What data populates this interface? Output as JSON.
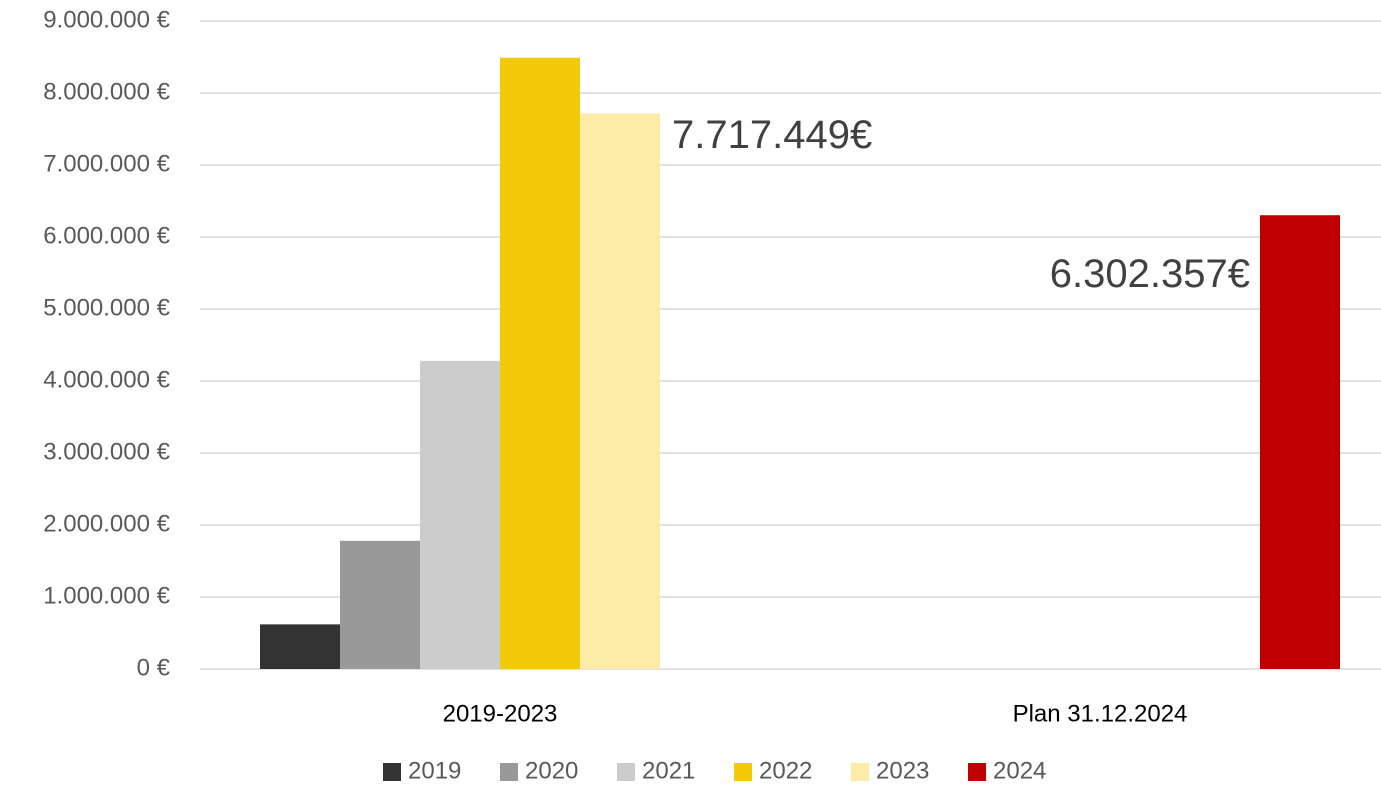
{
  "chart_data": {
    "type": "bar",
    "categories": [
      "2019-2023",
      "Plan 31.12.2024"
    ],
    "series": [
      {
        "name": "2019",
        "color": "#333333",
        "values": [
          620000,
          null
        ]
      },
      {
        "name": "2020",
        "color": "#999999",
        "values": [
          1780000,
          null
        ]
      },
      {
        "name": "2021",
        "color": "#cccccc",
        "values": [
          4280000,
          null
        ]
      },
      {
        "name": "2022",
        "color": "#f2ca0a",
        "values": [
          8490000,
          null
        ]
      },
      {
        "name": "2023",
        "color": "#fdeba8",
        "values": [
          7717449,
          null
        ],
        "value_labels": [
          "7.717.449€",
          null
        ]
      },
      {
        "name": "2024",
        "color": "#c00000",
        "values": [
          null,
          6302357
        ],
        "value_labels": [
          null,
          "6.302.357€"
        ]
      }
    ],
    "ylim": [
      0,
      9000000
    ],
    "yticks": [
      {
        "value": 0,
        "label": "0 €"
      },
      {
        "value": 1000000,
        "label": "1.000.000 €"
      },
      {
        "value": 2000000,
        "label": "2.000.000 €"
      },
      {
        "value": 3000000,
        "label": "3.000.000 €"
      },
      {
        "value": 4000000,
        "label": "4.000.000 €"
      },
      {
        "value": 5000000,
        "label": "5.000.000 €"
      },
      {
        "value": 6000000,
        "label": "6.000.000 €"
      },
      {
        "value": 7000000,
        "label": "7.000.000 €"
      },
      {
        "value": 8000000,
        "label": "8.000.000 €"
      },
      {
        "value": 9000000,
        "label": "9.000.000 €"
      }
    ],
    "grid": true,
    "legend": "bottom"
  }
}
